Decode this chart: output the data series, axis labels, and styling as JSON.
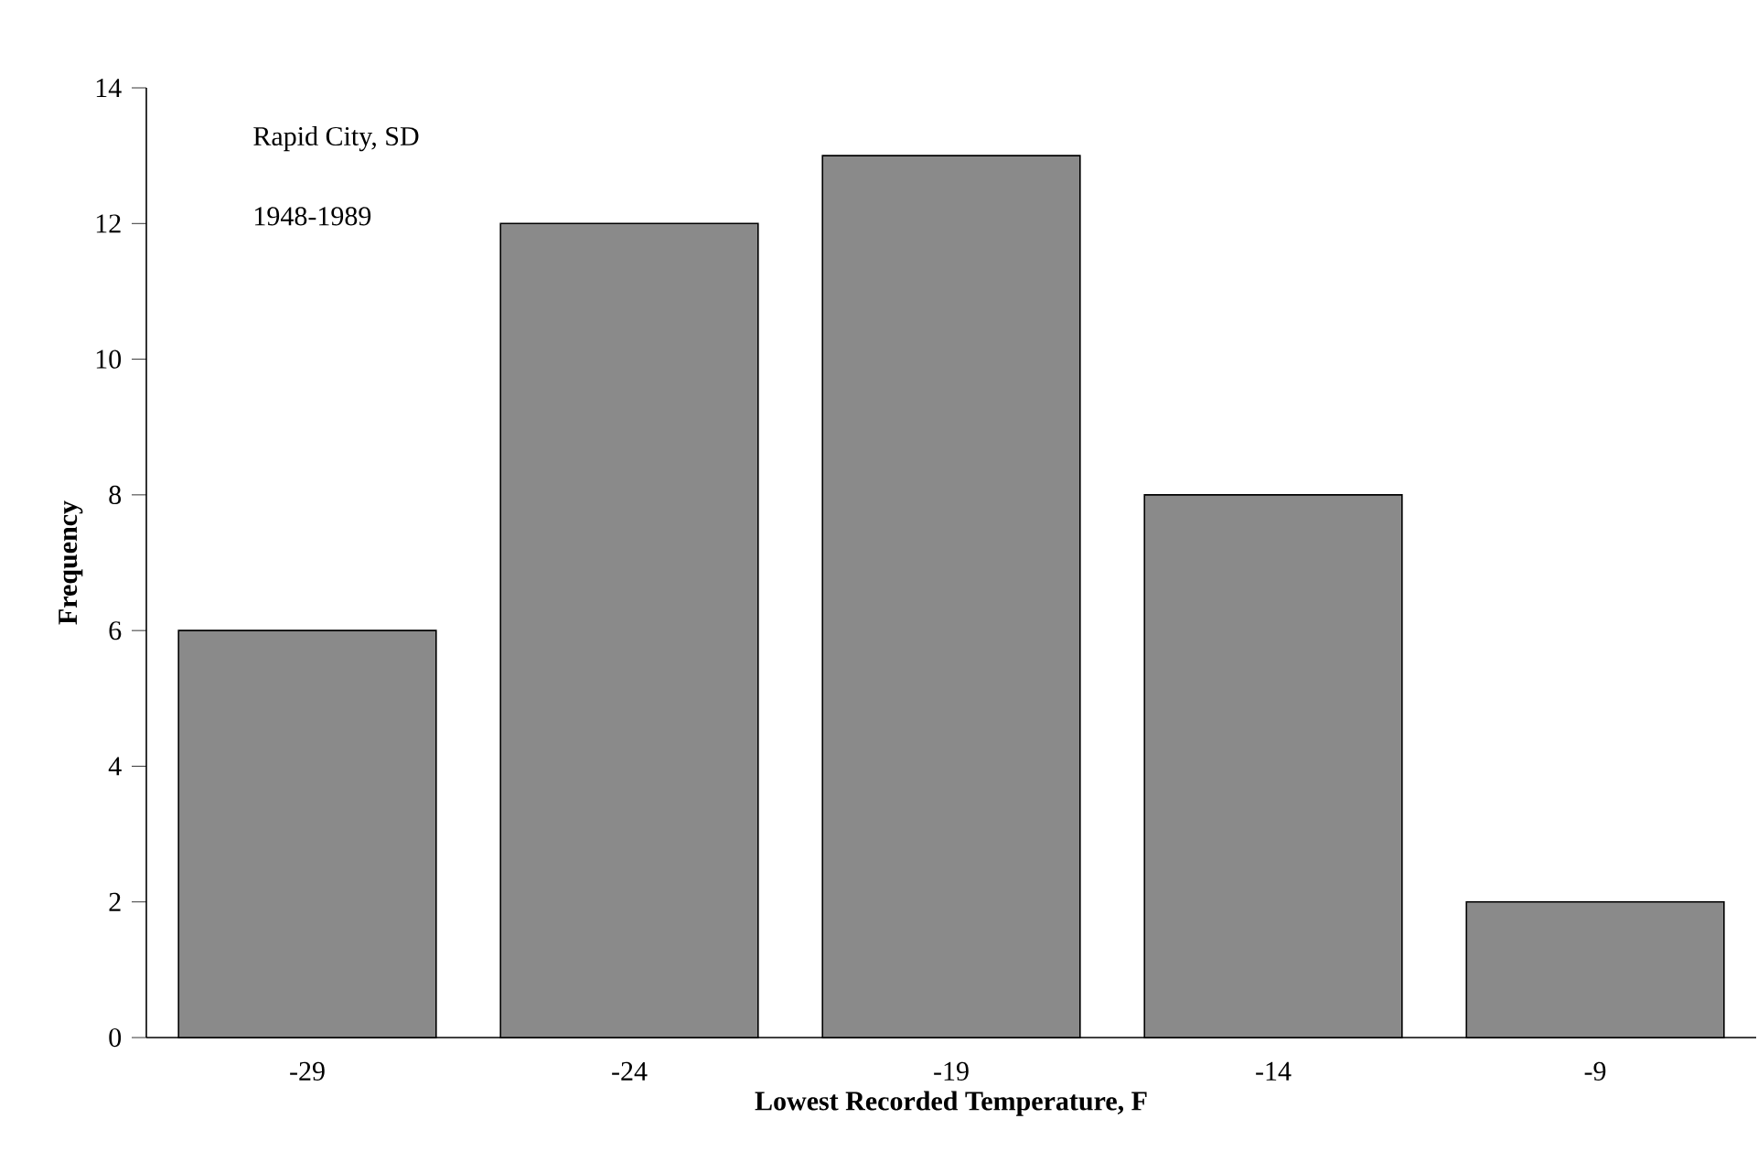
{
  "chart_data": {
    "type": "bar",
    "xlabel": "Lowest Recorded Temperature, F",
    "ylabel": "Frequency",
    "categories": [
      "-29",
      "-24",
      "-19",
      "-14",
      "-9"
    ],
    "values": [
      6,
      12,
      13,
      8,
      2
    ],
    "color": "#8a8a8a",
    "ylim": [
      0,
      14
    ],
    "yticks": [
      0,
      2,
      4,
      6,
      8,
      10,
      12,
      14
    ],
    "grid": false,
    "annotations": [
      "Rapid City, SD",
      "1948-1989"
    ]
  }
}
